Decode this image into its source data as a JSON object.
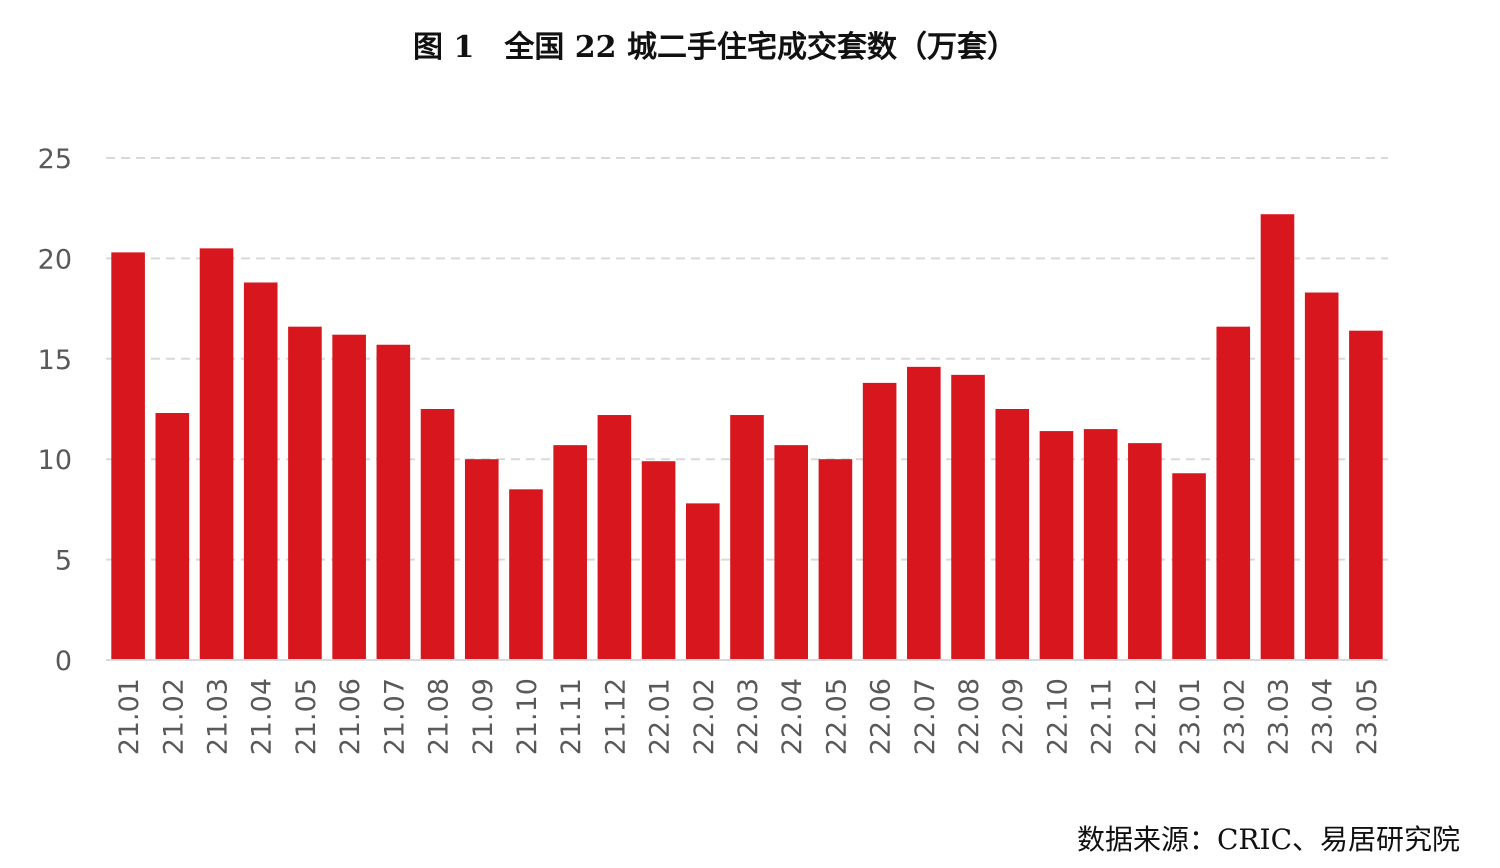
{
  "chart_data": {
    "type": "bar",
    "title": "图 1　全国 22 城二手住宅成交套数（万套）",
    "xlabel": "",
    "ylabel": "",
    "ylim": [
      0,
      25
    ],
    "yticks": [
      0,
      5,
      10,
      15,
      20,
      25
    ],
    "grid": true,
    "legend": "none",
    "bar_color": "#d7161d",
    "categories": [
      "21.01",
      "21.02",
      "21.03",
      "21.04",
      "21.05",
      "21.06",
      "21.07",
      "21.08",
      "21.09",
      "21.10",
      "21.11",
      "21.12",
      "22.01",
      "22.02",
      "22.03",
      "22.04",
      "22.05",
      "22.06",
      "22.07",
      "22.08",
      "22.09",
      "22.10",
      "22.11",
      "22.12",
      "23.01",
      "23.02",
      "23.03",
      "23.04",
      "23.05"
    ],
    "values": [
      20.3,
      12.3,
      20.5,
      18.8,
      16.6,
      16.2,
      15.7,
      12.5,
      10.0,
      8.5,
      10.7,
      12.2,
      9.9,
      7.8,
      12.2,
      10.7,
      10.0,
      13.8,
      14.6,
      14.2,
      12.5,
      11.4,
      11.5,
      10.8,
      9.3,
      16.6,
      22.2,
      18.3,
      16.4
    ]
  },
  "source": "数据来源：CRIC、易居研究院"
}
